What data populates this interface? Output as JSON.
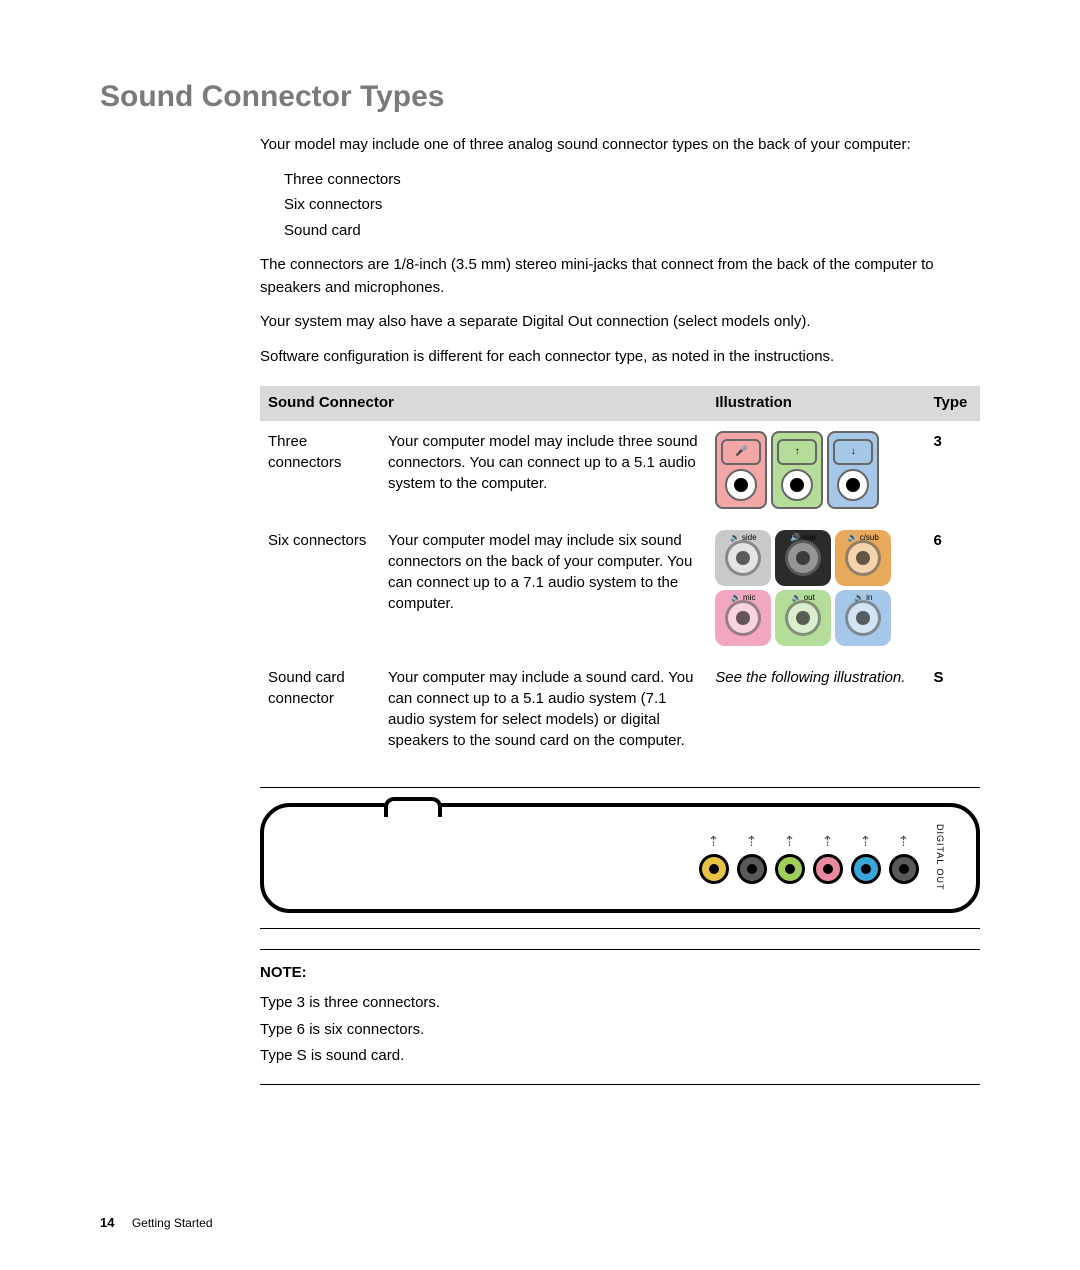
{
  "title": "Sound Connector Types",
  "intro": "Your model may include one of three analog sound connector types on the back of your computer:",
  "options": [
    "Three connectors",
    "Six connectors",
    "Sound card"
  ],
  "para2": "The connectors are 1/8-inch (3.5 mm) stereo mini-jacks that connect from the back of the computer to speakers and microphones.",
  "para3": "Your system may also have a separate Digital Out connection (select models only).",
  "para4": "Software configuration is different for each connector type, as noted in the instructions.",
  "table": {
    "headers": {
      "h1": "Sound Connector",
      "h2": "Illustration",
      "h3": "Type"
    },
    "rows": [
      {
        "name": "Three connectors",
        "desc": "Your computer model may include three sound connectors. You can connect up to a 5.1 audio system to the computer.",
        "type": "3",
        "illus_kind": "three",
        "jacks3": [
          {
            "bg": "#f2a6a6",
            "icon": "🎤"
          },
          {
            "bg": "#b5dd9a",
            "icon": "↑"
          },
          {
            "bg": "#a6c8e8",
            "icon": "↓"
          }
        ]
      },
      {
        "name": "Six connectors",
        "desc": "Your computer model may include six sound connectors on the back of your computer. You can connect up to a 7.1 audio system to the computer.",
        "type": "6",
        "illus_kind": "six",
        "jacks6": [
          {
            "bg": "#c9c9c9",
            "label": "side"
          },
          {
            "bg": "#2b2b2b",
            "label": "rear"
          },
          {
            "bg": "#e8a95a",
            "label": "c/sub"
          },
          {
            "bg": "#f2a6c0",
            "label": "mic"
          },
          {
            "bg": "#b5dd9a",
            "label": "out"
          },
          {
            "bg": "#a6c8e8",
            "label": "in"
          }
        ]
      },
      {
        "name": "Sound card connector",
        "desc": "Your computer may include a sound card. You can connect up to a 5.1 audio system (7.1 audio system for select models) or digital speakers to the sound card on the computer.",
        "type": "S",
        "illus_kind": "text",
        "illus_text": "See the following illustration."
      }
    ]
  },
  "soundcard_ports": [
    {
      "color": "#e6c245"
    },
    {
      "color": "#5a5a5a"
    },
    {
      "color": "#9fcf5a"
    },
    {
      "color": "#e88aa0"
    },
    {
      "color": "#3aa5d9"
    },
    {
      "color": "#5a5a5a"
    }
  ],
  "digital_out_label": "DIGITAL OUT",
  "note": {
    "label": "NOTE:",
    "lines": [
      "Type 3 is three connectors.",
      "Type 6 is six connectors.",
      "Type S is sound card."
    ]
  },
  "footer": {
    "page": "14",
    "section": "Getting Started"
  }
}
